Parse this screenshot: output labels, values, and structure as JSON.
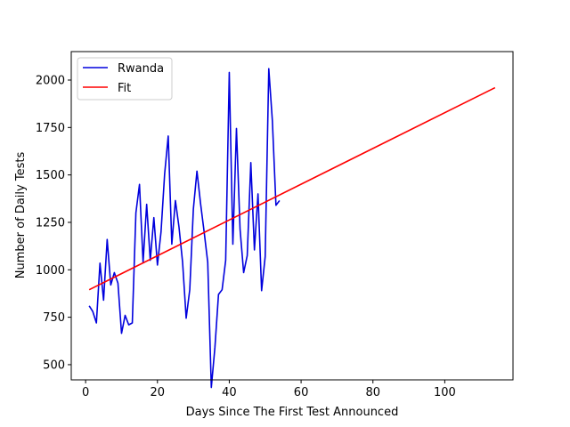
{
  "chart_data": {
    "type": "line",
    "title": "",
    "xlabel": "Days Since The First Test Announced",
    "ylabel": "Number of Daily Tests",
    "xlim": [
      -4,
      119
    ],
    "ylim": [
      420,
      2150
    ],
    "xticks": [
      0,
      20,
      40,
      60,
      80,
      100
    ],
    "yticks": [
      500,
      750,
      1000,
      1250,
      1500,
      1750,
      2000
    ],
    "grid": false,
    "legend": "top-left",
    "series": [
      {
        "name": "Rwanda",
        "color": "#0000dd",
        "x": [
          1,
          2,
          3,
          4,
          5,
          6,
          7,
          8,
          9,
          10,
          11,
          12,
          13,
          14,
          15,
          16,
          17,
          18,
          19,
          20,
          21,
          22,
          23,
          24,
          25,
          26,
          27,
          28,
          29,
          30,
          31,
          32,
          33,
          34,
          35,
          36,
          37,
          38,
          39,
          40,
          41,
          42,
          43,
          44,
          45,
          46,
          47,
          48,
          49,
          50,
          51,
          52,
          53,
          54
        ],
        "y": [
          810,
          780,
          720,
          1035,
          840,
          1160,
          920,
          985,
          930,
          665,
          760,
          710,
          720,
          1300,
          1450,
          1040,
          1345,
          1050,
          1275,
          1025,
          1200,
          1505,
          1705,
          1135,
          1365,
          1225,
          1040,
          745,
          895,
          1320,
          1520,
          1350,
          1200,
          1040,
          380,
          590,
          870,
          895,
          1050,
          2040,
          1135,
          1745,
          1215,
          985,
          1075,
          1565,
          1105,
          1400,
          890,
          1070,
          2060,
          1785,
          1340,
          1365
        ]
      },
      {
        "name": "Fit",
        "color": "#ff0000",
        "x": [
          1,
          114
        ],
        "y": [
          895,
          1960
        ]
      }
    ]
  }
}
